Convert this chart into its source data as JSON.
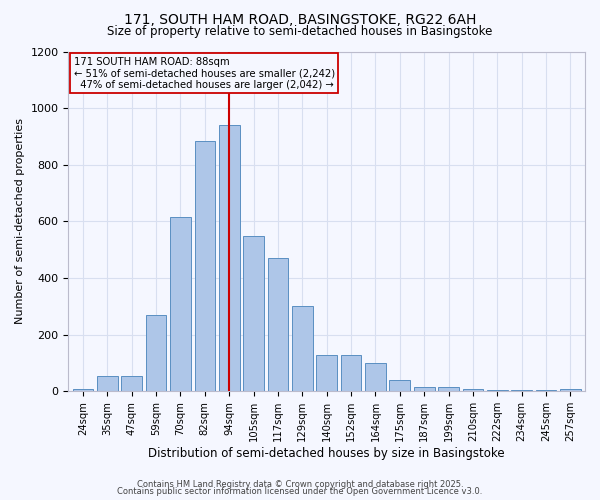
{
  "title1": "171, SOUTH HAM ROAD, BASINGSTOKE, RG22 6AH",
  "title2": "Size of property relative to semi-detached houses in Basingstoke",
  "xlabel": "Distribution of semi-detached houses by size in Basingstoke",
  "ylabel": "Number of semi-detached properties",
  "categories": [
    "24sqm",
    "35sqm",
    "47sqm",
    "59sqm",
    "70sqm",
    "82sqm",
    "94sqm",
    "105sqm",
    "117sqm",
    "129sqm",
    "140sqm",
    "152sqm",
    "164sqm",
    "175sqm",
    "187sqm",
    "199sqm",
    "210sqm",
    "222sqm",
    "234sqm",
    "245sqm",
    "257sqm"
  ],
  "values": [
    10,
    55,
    55,
    270,
    615,
    885,
    940,
    550,
    470,
    300,
    130,
    130,
    100,
    40,
    15,
    15,
    10,
    5,
    5,
    5,
    10
  ],
  "bar_color": "#aec6e8",
  "bar_edge_color": "#5a8fc2",
  "bg_color": "#f5f7ff",
  "grid_color": "#d8dff0",
  "property_label": "171 SOUTH HAM ROAD: 88sqm",
  "smaller_pct": "51%",
  "smaller_count": "2,242",
  "larger_pct": "47%",
  "larger_count": "2,042",
  "red_line_color": "#cc0000",
  "footer1": "Contains HM Land Registry data © Crown copyright and database right 2025.",
  "footer2": "Contains public sector information licensed under the Open Government Licence v3.0.",
  "ylim": [
    0,
    1200
  ],
  "yticks": [
    0,
    200,
    400,
    600,
    800,
    1000,
    1200
  ],
  "red_line_x": 6.0
}
